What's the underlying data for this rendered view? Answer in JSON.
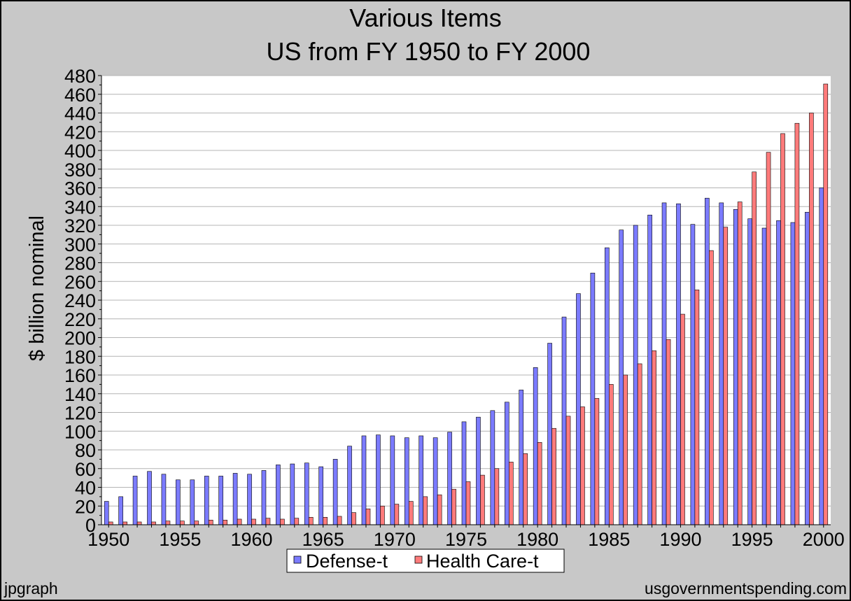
{
  "chart_data": {
    "type": "bar",
    "title": "Various Items",
    "subtitle": "US from FY 1950 to FY 2000",
    "ylabel": "$ billion nominal",
    "xlabel": "",
    "ylim": [
      0,
      480
    ],
    "y_major_step": 20,
    "grid": true,
    "legend_position": "bottom-center",
    "x": [
      1950,
      1951,
      1952,
      1953,
      1954,
      1955,
      1956,
      1957,
      1958,
      1959,
      1960,
      1961,
      1962,
      1963,
      1964,
      1965,
      1966,
      1967,
      1968,
      1969,
      1970,
      1971,
      1972,
      1973,
      1974,
      1975,
      1976,
      1977,
      1978,
      1979,
      1980,
      1981,
      1982,
      1983,
      1984,
      1985,
      1986,
      1987,
      1988,
      1989,
      1990,
      1991,
      1992,
      1993,
      1994,
      1995,
      1996,
      1997,
      1998,
      1999,
      2000
    ],
    "x_tick_labels": [
      "1950",
      "1955",
      "1960",
      "1965",
      "1970",
      "1975",
      "1980",
      "1985",
      "1990",
      "1995",
      "2000"
    ],
    "series": [
      {
        "name": "Defense-t",
        "color": "#7b7bff",
        "values": [
          25,
          30,
          52,
          57,
          54,
          48,
          48,
          52,
          52,
          55,
          54,
          58,
          64,
          65,
          66,
          62,
          70,
          84,
          95,
          96,
          95,
          93,
          95,
          93,
          99,
          110,
          115,
          122,
          131,
          144,
          168,
          194,
          222,
          247,
          269,
          296,
          315,
          320,
          331,
          344,
          343,
          321,
          349,
          344,
          337,
          327,
          317,
          325,
          323,
          334,
          360
        ]
      },
      {
        "name": "Health Care-t",
        "color": "#ff7b7b",
        "values": [
          3,
          3,
          3,
          3,
          4,
          4,
          4,
          5,
          5,
          6,
          6,
          7,
          6,
          7,
          8,
          8,
          9,
          13,
          17,
          20,
          22,
          25,
          30,
          32,
          38,
          46,
          53,
          60,
          67,
          76,
          88,
          103,
          116,
          126,
          135,
          150,
          160,
          172,
          186,
          198,
          225,
          251,
          293,
          318,
          345,
          377,
          398,
          418,
          429,
          440,
          471
        ]
      }
    ]
  },
  "footer": {
    "left": "jpgraph",
    "right": "usgovernmentspending.com"
  }
}
